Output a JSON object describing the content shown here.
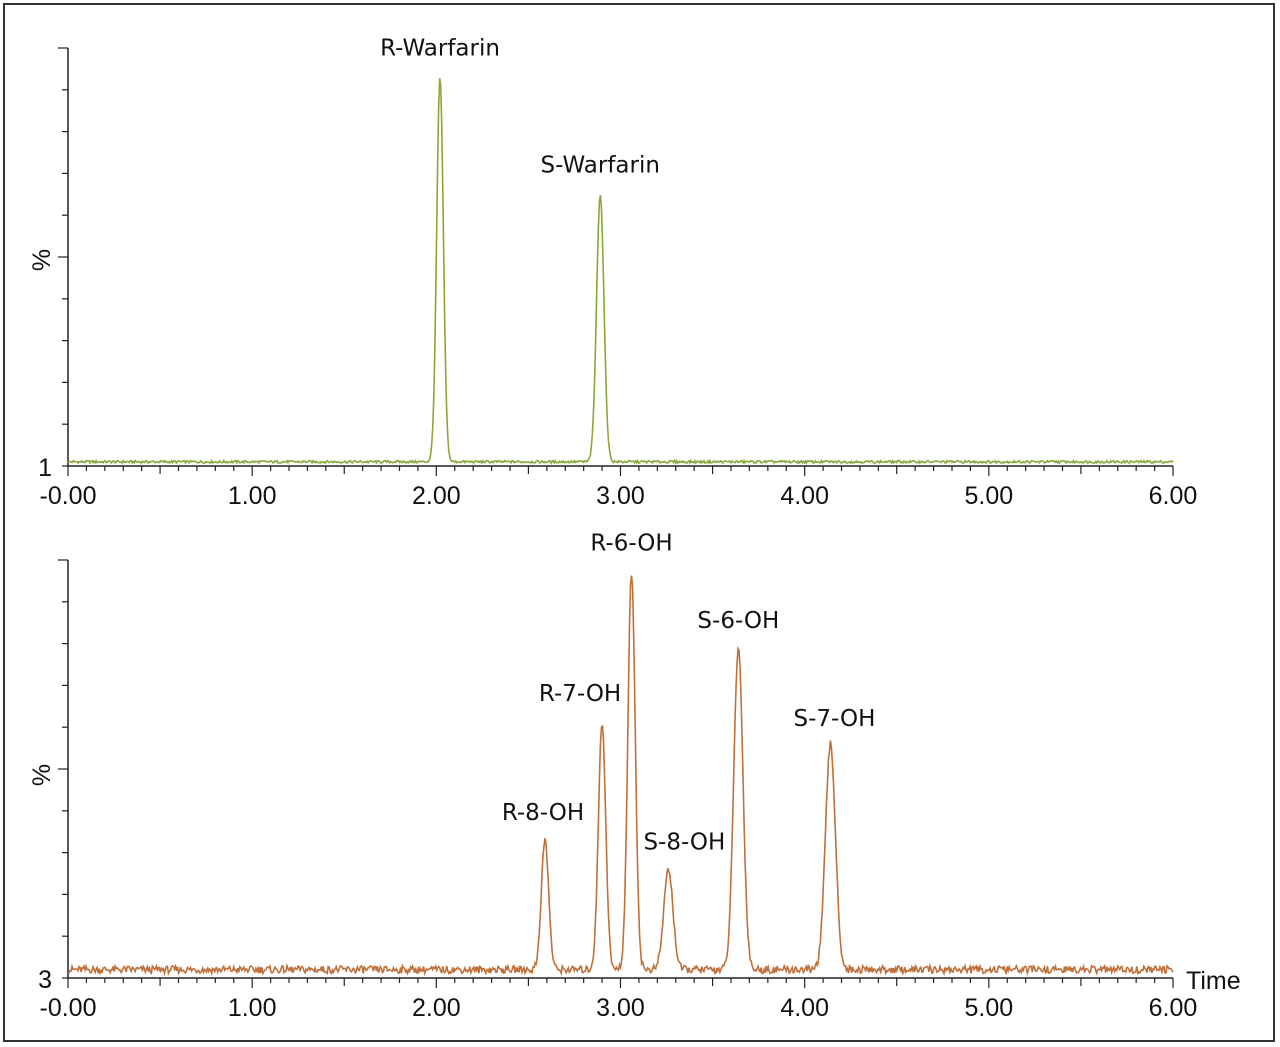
{
  "chart_data": [
    {
      "type": "line",
      "xlabel": "",
      "ylabel": "%",
      "y_min_label": "1",
      "xlim": [
        0,
        6
      ],
      "x_ticks": [
        "-0.00",
        "1.00",
        "2.00",
        "3.00",
        "4.00",
        "5.00",
        "6.00"
      ],
      "color": "#8aa83a",
      "baseline_level": 0.01,
      "peaks": [
        {
          "name": "R-Warfarin",
          "x": 2.02,
          "height": 0.92,
          "width": 0.018
        },
        {
          "name": "S-Warfarin",
          "x": 2.89,
          "height": 0.64,
          "width": 0.02
        }
      ]
    },
    {
      "type": "line",
      "xlabel": "Time",
      "ylabel": "%",
      "y_min_label": "3",
      "xlim": [
        0,
        6
      ],
      "x_ticks": [
        "-0.00",
        "1.00",
        "2.00",
        "3.00",
        "4.00",
        "5.00",
        "6.00"
      ],
      "color": "#c0703a",
      "baseline_level": 0.02,
      "peaks": [
        {
          "name": "R-8-OH",
          "x": 2.59,
          "height": 0.31,
          "width": 0.02
        },
        {
          "name": "R-7-OH",
          "x": 2.9,
          "height": 0.59,
          "width": 0.02
        },
        {
          "name": "R-6-OH",
          "x": 3.06,
          "height": 0.95,
          "width": 0.02
        },
        {
          "name": "S-8-OH",
          "x": 3.26,
          "height": 0.24,
          "width": 0.025
        },
        {
          "name": "S-6-OH",
          "x": 3.64,
          "height": 0.77,
          "width": 0.025
        },
        {
          "name": "S-7-OH",
          "x": 4.14,
          "height": 0.54,
          "width": 0.027
        }
      ]
    }
  ]
}
